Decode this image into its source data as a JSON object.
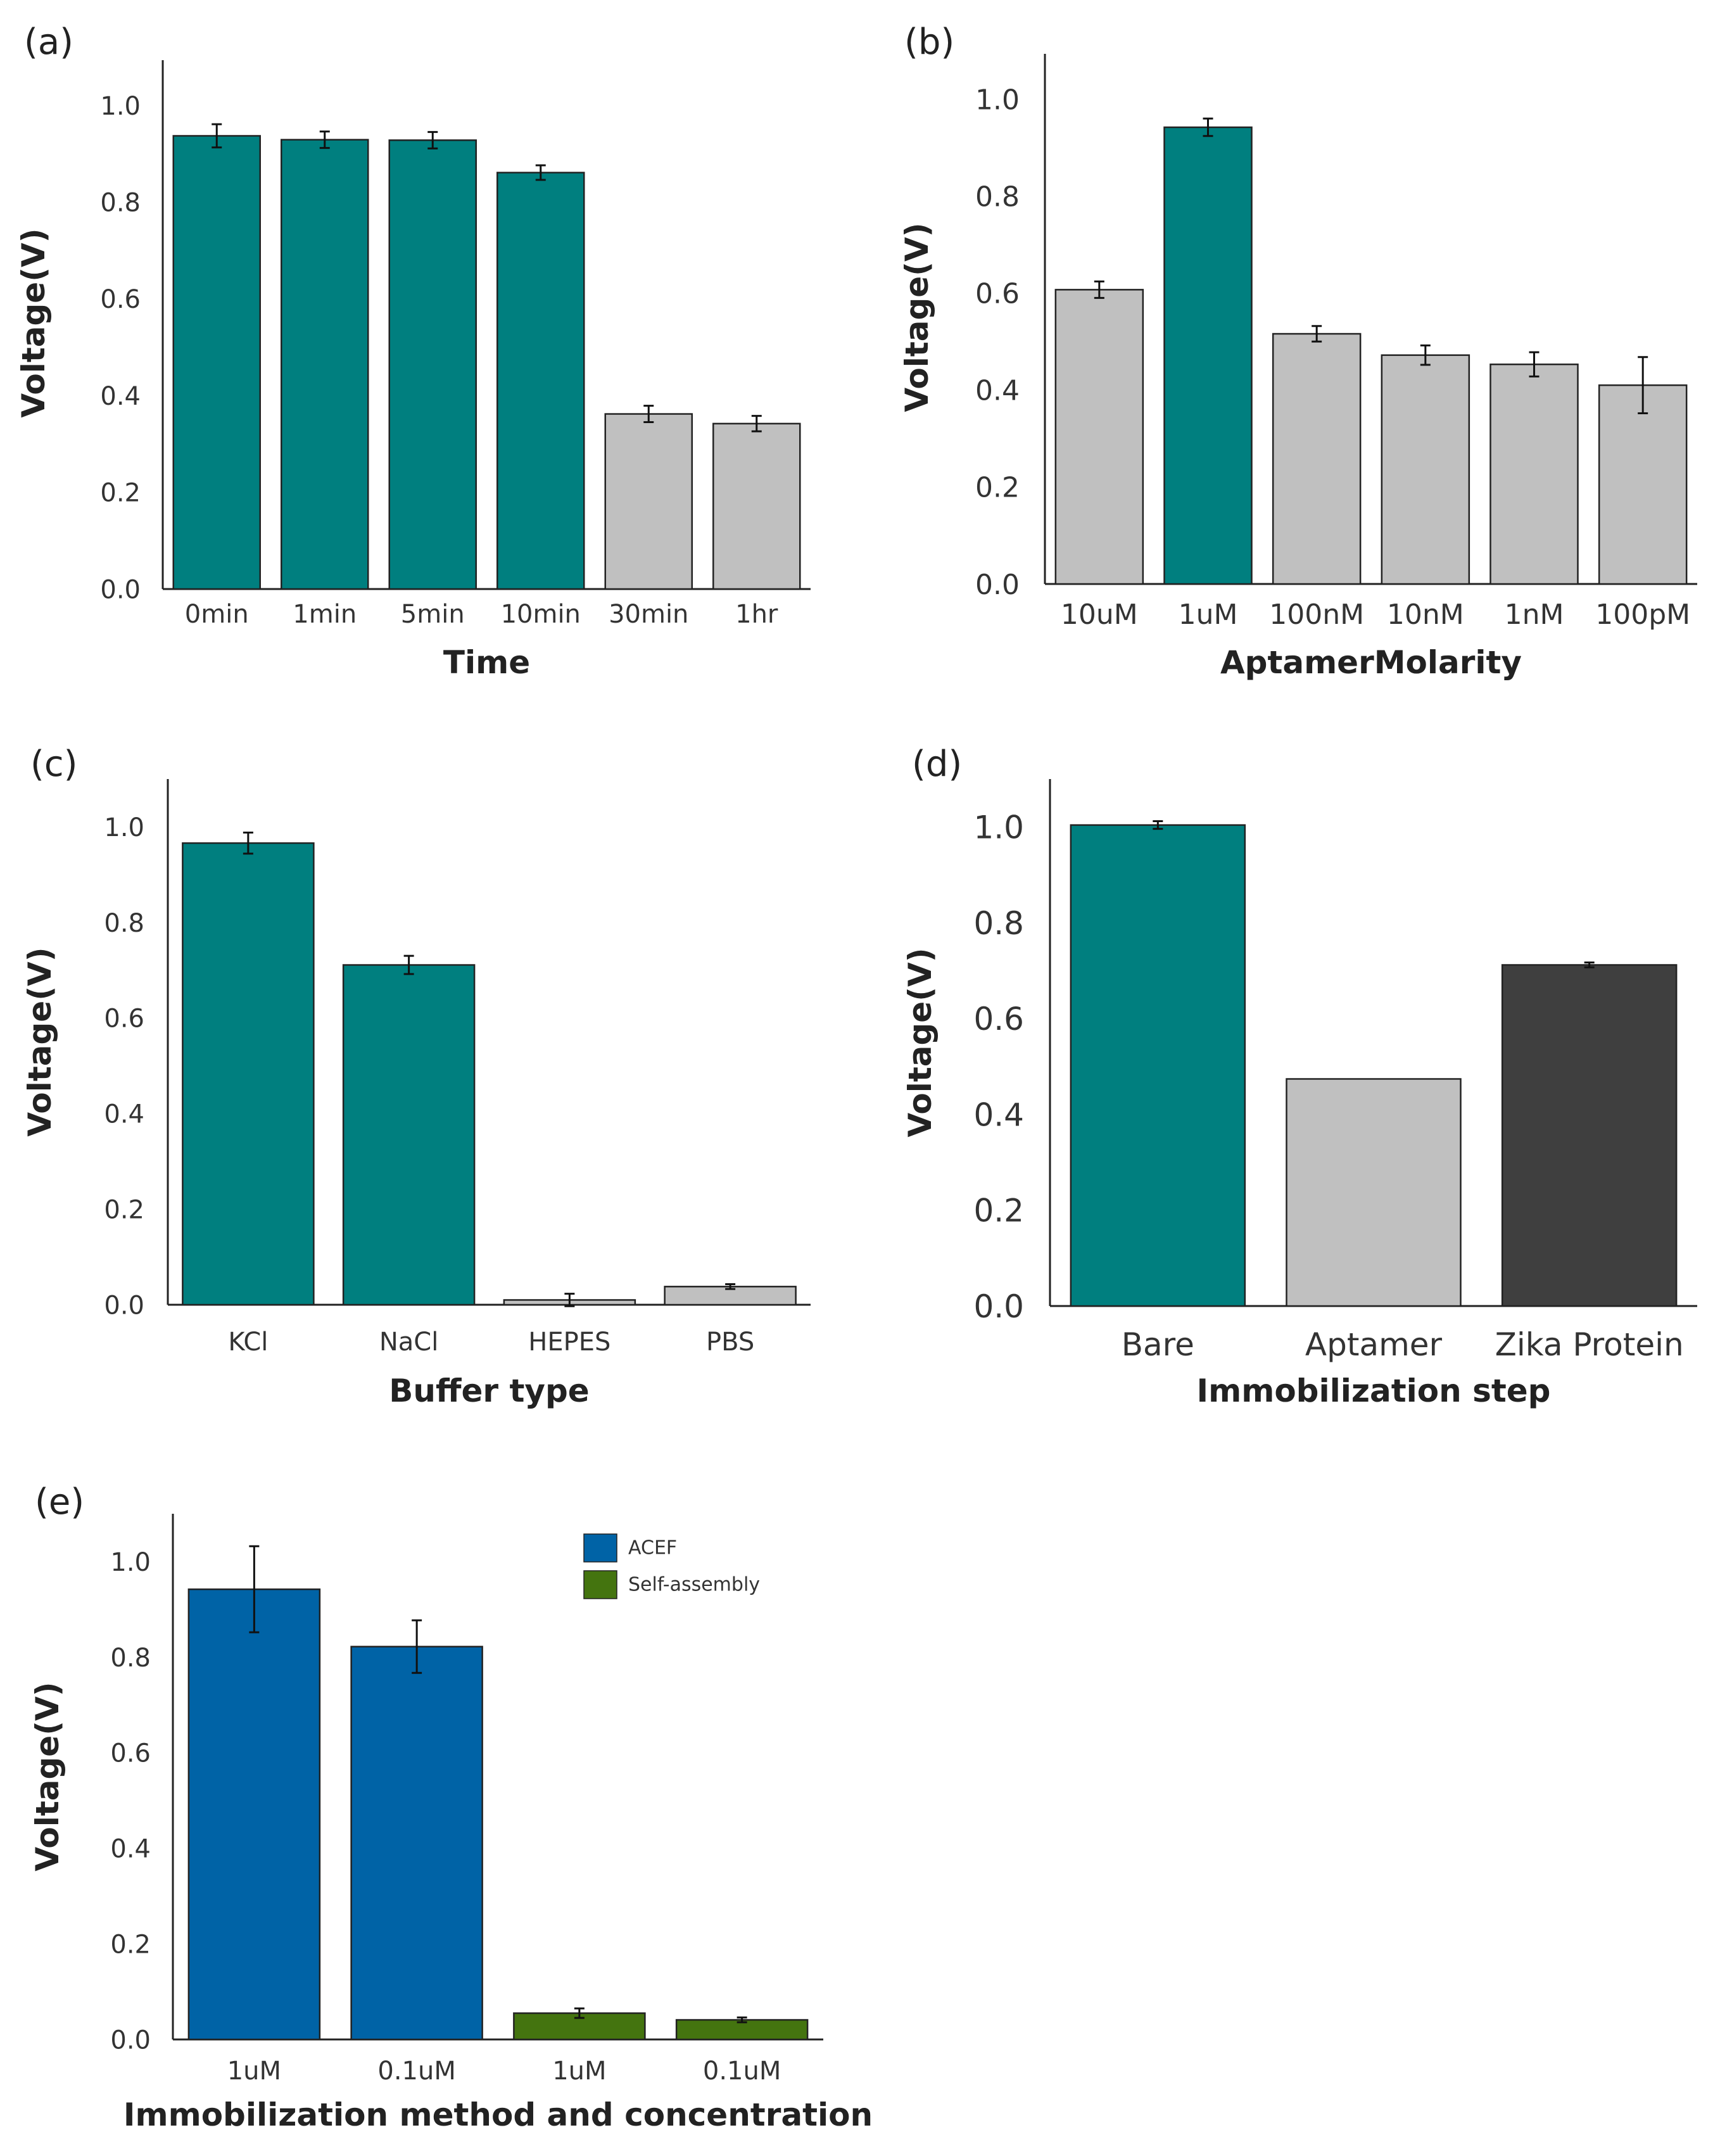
{
  "chart_data": [
    {
      "type": "bar",
      "panel_label": "(a)",
      "xlabel": "Time",
      "ylabel": "Voltage(V)",
      "ylim": [
        0,
        1.1
      ],
      "yticks": [
        "0.0",
        "0.2",
        "0.4",
        "0.6",
        "0.8",
        "1.0"
      ],
      "categories": [
        "0min",
        "1min",
        "5min",
        "10min",
        "30min",
        "1hr"
      ],
      "values": [
        0.937,
        0.929,
        0.928,
        0.861,
        0.362,
        0.342
      ],
      "errors": [
        0.024,
        0.017,
        0.017,
        0.015,
        0.017,
        0.016
      ],
      "bar_colors": [
        "#007f7f",
        "#007f7f",
        "#007f7f",
        "#007f7f",
        "#c0c0c0",
        "#c0c0c0"
      ],
      "grid": false
    },
    {
      "type": "bar",
      "panel_label": "(b)",
      "xlabel": "AptamerMolarity",
      "ylabel": "Voltage(V)",
      "ylim": [
        0,
        1.1
      ],
      "yticks": [
        "0.0",
        "0.2",
        "0.4",
        "0.6",
        "0.8",
        "1.0"
      ],
      "categories": [
        "10uM",
        "1uM",
        "100nM",
        "10nM",
        "1nM",
        "100pM"
      ],
      "values": [
        0.607,
        0.942,
        0.516,
        0.472,
        0.453,
        0.41
      ],
      "errors": [
        0.017,
        0.018,
        0.016,
        0.02,
        0.025,
        0.058
      ],
      "bar_colors": [
        "#c0c0c0",
        "#007f7f",
        "#c0c0c0",
        "#c0c0c0",
        "#c0c0c0",
        "#c0c0c0"
      ],
      "grid": false
    },
    {
      "type": "bar",
      "panel_label": "(c)",
      "xlabel": "Buffer type",
      "ylabel": "Voltage(V)",
      "ylim": [
        0,
        1.1
      ],
      "yticks": [
        "0.0",
        "0.2",
        "0.4",
        "0.6",
        "0.8",
        "1.0"
      ],
      "categories": [
        "KCl",
        "NaCl",
        "HEPES",
        "PBS"
      ],
      "values": [
        0.966,
        0.711,
        0.01,
        0.038
      ],
      "errors": [
        0.022,
        0.019,
        0.013,
        0.005
      ],
      "bar_colors": [
        "#007f7f",
        "#007f7f",
        "#c0c0c0",
        "#c0c0c0"
      ],
      "grid": false
    },
    {
      "type": "bar",
      "panel_label": "(d)",
      "xlabel": "Immobilization step",
      "ylabel": "Voltage(V)",
      "ylim": [
        0,
        1.1
      ],
      "yticks": [
        "0.0",
        "0.2",
        "0.4",
        "0.6",
        "0.8",
        "1.0"
      ],
      "categories": [
        "Bare",
        "Aptamer",
        "Zika Protein"
      ],
      "values": [
        1.004,
        0.474,
        0.712
      ],
      "errors": [
        0.008,
        0,
        0.005
      ],
      "bar_colors": [
        "#007f7f",
        "#c0c0c0",
        "#3f3f3f"
      ],
      "grid": false
    },
    {
      "type": "bar",
      "panel_label": "(e)",
      "xlabel": "Immobilization method and concentration",
      "ylabel": "Voltage(V)",
      "ylim": [
        0,
        1.1
      ],
      "yticks": [
        "0.0",
        "0.2",
        "0.4",
        "0.6",
        "0.8",
        "1.0"
      ],
      "categories": [
        "1uM",
        "0.1uM",
        "1uM",
        "0.1uM"
      ],
      "values": [
        0.942,
        0.822,
        0.055,
        0.041
      ],
      "errors": [
        0.09,
        0.055,
        0.01,
        0.005
      ],
      "bar_colors": [
        "#0063a6",
        "#0063a6",
        "#44740f",
        "#44740f"
      ],
      "legend": [
        {
          "name": "ACEF",
          "color": "#0063a6"
        },
        {
          "name": "Self-assembly",
          "color": "#44740f"
        }
      ],
      "legend_position": "top-right",
      "grid": false
    }
  ]
}
